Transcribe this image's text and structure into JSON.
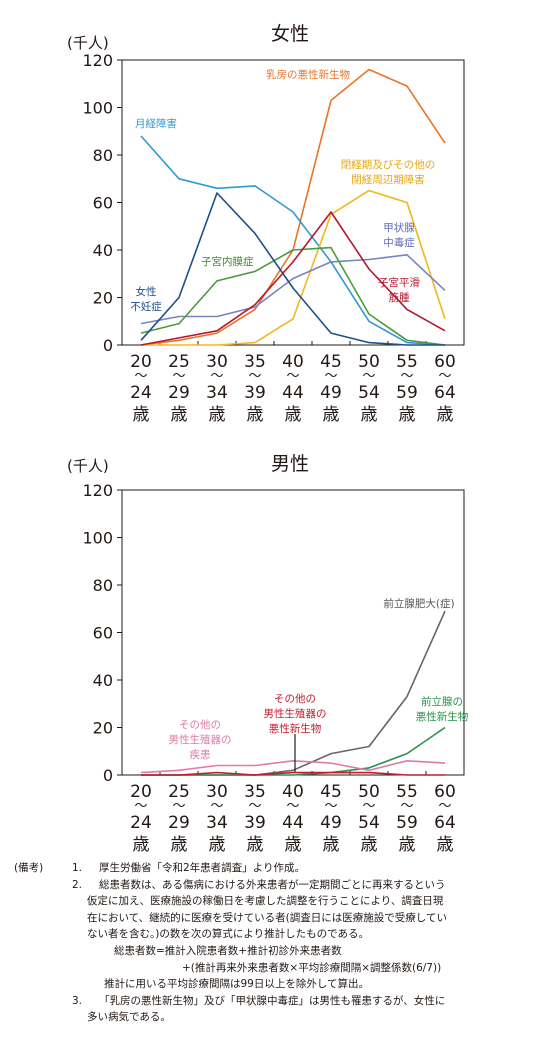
{
  "chart_data": [
    {
      "type": "line",
      "title": "女性",
      "unit_label": "(千人)",
      "y_ticks": [
        "0",
        "20",
        "40",
        "60",
        "80",
        "100",
        "120"
      ],
      "ylim": [
        0,
        120
      ],
      "categories": [
        "20〜24歳",
        "25〜29歳",
        "30〜34歳",
        "35〜39歳",
        "40〜44歳",
        "45〜49歳",
        "50〜54歳",
        "55〜59歳",
        "60〜64歳"
      ],
      "x_ticks": [
        [
          "20",
          "〜",
          "24",
          "歳"
        ],
        [
          "25",
          "〜",
          "29",
          "歳"
        ],
        [
          "30",
          "〜",
          "34",
          "歳"
        ],
        [
          "35",
          "〜",
          "39",
          "歳"
        ],
        [
          "40",
          "〜",
          "44",
          "歳"
        ],
        [
          "45",
          "〜",
          "49",
          "歳"
        ],
        [
          "50",
          "〜",
          "54",
          "歳"
        ],
        [
          "55",
          "〜",
          "59",
          "歳"
        ],
        [
          "60",
          "〜",
          "64",
          "歳"
        ]
      ],
      "grid": false,
      "series": [
        {
          "name": "乳房の悪性新生物",
          "color": "#e8742a",
          "values": [
            0,
            2,
            5,
            15,
            40,
            103,
            116,
            109,
            85
          ]
        },
        {
          "name": "月経障害",
          "color": "#2f9bd1",
          "values": [
            88,
            70,
            66,
            67,
            56,
            35,
            10,
            1,
            0
          ]
        },
        {
          "name": "閉経期及びその他の閉経周辺期障害",
          "color": "#f3b61c",
          "values": [
            0,
            0,
            0,
            1,
            11,
            55,
            65,
            60,
            11
          ]
        },
        {
          "name": "甲状腺中毒症",
          "color": "#7784c4",
          "values": [
            9,
            12,
            12,
            16,
            28,
            35,
            36,
            38,
            23
          ]
        },
        {
          "name": "子宮内膜症",
          "color": "#4b9a3c",
          "values": [
            5,
            9,
            27,
            31,
            40,
            41,
            13,
            2,
            0
          ]
        },
        {
          "name": "女性不妊症",
          "color": "#1e4f8c",
          "values": [
            2,
            20,
            64,
            47,
            24,
            5,
            1,
            0,
            0
          ]
        },
        {
          "name": "子宮平滑筋腫",
          "color": "#b5172f",
          "values": [
            0,
            3,
            6,
            17,
            35,
            56,
            32,
            15,
            6
          ]
        }
      ],
      "series_labels": [
        {
          "lines": [
            "乳房の悪性新生物"
          ]
        },
        {
          "lines": [
            "月経障害"
          ]
        },
        {
          "lines": [
            "閉経期及びその他の",
            "閉経周辺期障害"
          ]
        },
        {
          "lines": [
            "甲状腺",
            "中毒症"
          ]
        },
        {
          "lines": [
            "子宮内膜症"
          ]
        },
        {
          "lines": [
            "女性",
            "不妊症"
          ]
        },
        {
          "lines": [
            "子宮平滑",
            "筋腫"
          ]
        }
      ]
    },
    {
      "type": "line",
      "title": "男性",
      "unit_label": "(千人)",
      "y_ticks": [
        "0",
        "20",
        "40",
        "60",
        "80",
        "100",
        "120"
      ],
      "ylim": [
        0,
        120
      ],
      "categories": [
        "20〜24歳",
        "25〜29歳",
        "30〜34歳",
        "35〜39歳",
        "40〜44歳",
        "45〜49歳",
        "50〜54歳",
        "55〜59歳",
        "60〜64歳"
      ],
      "x_ticks": [
        [
          "20",
          "〜",
          "24",
          "歳"
        ],
        [
          "25",
          "〜",
          "29",
          "歳"
        ],
        [
          "30",
          "〜",
          "34",
          "歳"
        ],
        [
          "35",
          "〜",
          "39",
          "歳"
        ],
        [
          "40",
          "〜",
          "44",
          "歳"
        ],
        [
          "45",
          "〜",
          "49",
          "歳"
        ],
        [
          "50",
          "〜",
          "54",
          "歳"
        ],
        [
          "55",
          "〜",
          "59",
          "歳"
        ],
        [
          "60",
          "〜",
          "64",
          "歳"
        ]
      ],
      "grid": false,
      "series": [
        {
          "name": "前立腺肥大(症)",
          "color": "#666666",
          "values": [
            0,
            0,
            0,
            0,
            2,
            9,
            12,
            33,
            69
          ]
        },
        {
          "name": "前立腺の悪性新生物",
          "color": "#27944a",
          "values": [
            0,
            0,
            0,
            0,
            0,
            1,
            3,
            9,
            20
          ]
        },
        {
          "name": "その他の男性生殖器の疾患",
          "color": "#e07aa8",
          "values": [
            1,
            2,
            4,
            4,
            6,
            5,
            2,
            6,
            5
          ]
        },
        {
          "name": "その他の男性生殖器の悪性新生物",
          "color": "#c41c2c",
          "values": [
            0,
            0,
            1,
            0,
            1,
            1,
            1,
            0,
            0
          ]
        }
      ],
      "series_labels": [
        {
          "lines": [
            "前立腺肥大(症)"
          ]
        },
        {
          "lines": [
            "前立腺の",
            "悪性新生物"
          ]
        },
        {
          "lines": [
            "その他の",
            "男性生殖器の",
            "疾患"
          ]
        },
        {
          "lines": [
            "その他の",
            "男性生殖器の",
            "悪性新生物"
          ]
        }
      ]
    }
  ],
  "notes": {
    "head": "(備考)",
    "items": [
      {
        "num": "1.",
        "lines": [
          "厚生労働省「令和2年患者調査」より作成。"
        ]
      },
      {
        "num": "2.",
        "lines": [
          "総患者数は、ある傷病における外来患者が一定期間ごとに再来するという",
          "仮定に加え、医療施設の稼働日を考慮した調整を行うことにより、調査日現",
          "在において、継続的に医療を受けている者(調査日には医療施設で受療してい",
          "ない者を含む。)の数を次の算式により推計したものである。"
        ]
      },
      {
        "num": "",
        "lines": [
          "総患者数=推計入院患者数+推計初診外来患者数"
        ]
      },
      {
        "num": "",
        "lines": [
          "+(推計再来外来患者数×平均診療間隔×調整係数(6/7))"
        ]
      },
      {
        "num": "",
        "lines": [
          "推計に用いる平均診療間隔は99日以上を除外して算出。"
        ]
      },
      {
        "num": "3.",
        "lines": [
          "「乳房の悪性新生物」及び「甲状腺中毒症」は男性も罹患するが、女性に",
          "多い病気である。"
        ]
      }
    ]
  }
}
